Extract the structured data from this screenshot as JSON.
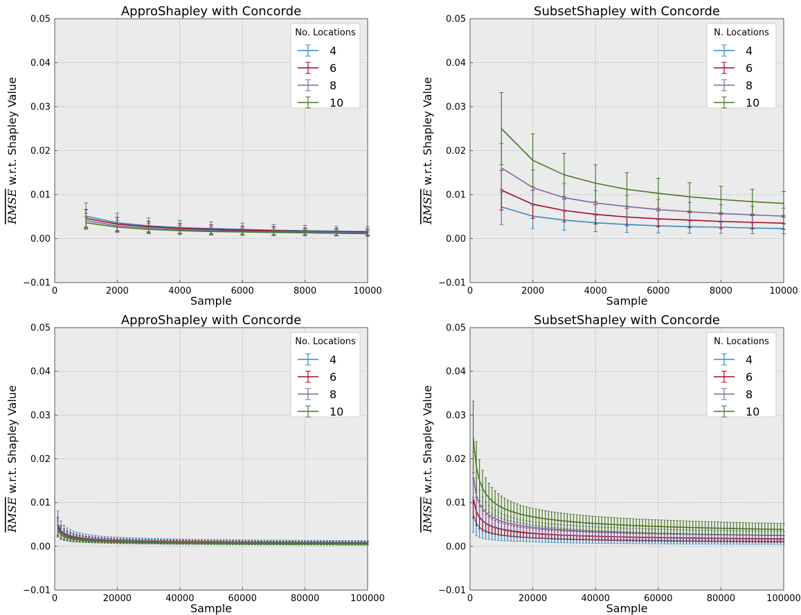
{
  "chart_data": [
    {
      "type": "line",
      "title": "ApproShapley with Concorde",
      "xlabel": "Sample",
      "ylabel_prefix": "RMSE",
      "ylabel": "w.r.t. Shapley Value",
      "xlim": [
        0,
        10000
      ],
      "ylim": [
        -0.01,
        0.05
      ],
      "xticks": [
        "0",
        "2000",
        "4000",
        "6000",
        "8000",
        "10000"
      ],
      "yticks": [
        "−0.01",
        "0.00",
        "0.01",
        "0.02",
        "0.03",
        "0.04",
        "0.05"
      ],
      "grid": true,
      "legend_title": "No. Locations",
      "legend_position": "top-right",
      "x": [
        1000,
        2000,
        3000,
        4000,
        5000,
        6000,
        7000,
        8000,
        9000,
        10000
      ],
      "series": [
        {
          "name": "4",
          "color": "#348abd",
          "values": [
            0.0051,
            0.0036,
            0.0029,
            0.0025,
            0.0023,
            0.0021,
            0.0019,
            0.0018,
            0.0017,
            0.0016
          ],
          "err": [
            0.003,
            0.0022,
            0.0018,
            0.0016,
            0.0015,
            0.0014,
            0.0013,
            0.0012,
            0.0011,
            0.0011
          ]
        },
        {
          "name": "6",
          "color": "#a60628",
          "values": [
            0.0046,
            0.0033,
            0.0027,
            0.0023,
            0.0021,
            0.0019,
            0.0018,
            0.0016,
            0.0015,
            0.0015
          ],
          "err": [
            0.002,
            0.0015,
            0.0012,
            0.0011,
            0.001,
            0.0009,
            0.0009,
            0.0008,
            0.0008,
            0.0007
          ]
        },
        {
          "name": "8",
          "color": "#7a68a6",
          "values": [
            0.0041,
            0.0029,
            0.0024,
            0.002,
            0.0018,
            0.0017,
            0.0016,
            0.0015,
            0.0014,
            0.0013
          ],
          "err": [
            0.0016,
            0.0012,
            0.001,
            0.0009,
            0.0008,
            0.0007,
            0.0007,
            0.0006,
            0.0006,
            0.0006
          ]
        },
        {
          "name": "10",
          "color": "#467821",
          "values": [
            0.0036,
            0.0026,
            0.0021,
            0.0018,
            0.0016,
            0.0015,
            0.0014,
            0.0013,
            0.0012,
            0.0011
          ],
          "err": [
            0.0013,
            0.001,
            0.0008,
            0.0007,
            0.0006,
            0.0006,
            0.0005,
            0.0005,
            0.0005,
            0.0004
          ]
        }
      ]
    },
    {
      "type": "line",
      "title": "SubsetShapley with Concorde",
      "xlabel": "Sample",
      "ylabel_prefix": "RMSE",
      "ylabel": "w.r.t. Shapley Value",
      "xlim": [
        0,
        10000
      ],
      "ylim": [
        -0.01,
        0.05
      ],
      "xticks": [
        "0",
        "2000",
        "4000",
        "6000",
        "8000",
        "10000"
      ],
      "yticks": [
        "−0.01",
        "0.00",
        "0.01",
        "0.02",
        "0.03",
        "0.04",
        "0.05"
      ],
      "grid": true,
      "legend_title": "N. Locations",
      "legend_position": "top-right",
      "x": [
        1000,
        2000,
        3000,
        4000,
        5000,
        6000,
        7000,
        8000,
        9000,
        10000
      ],
      "series": [
        {
          "name": "4",
          "color": "#348abd",
          "values": [
            0.0072,
            0.0051,
            0.0042,
            0.0036,
            0.0032,
            0.0029,
            0.0027,
            0.0026,
            0.0024,
            0.0023
          ],
          "err": [
            0.004,
            0.0028,
            0.0023,
            0.002,
            0.0018,
            0.0016,
            0.0015,
            0.0014,
            0.0013,
            0.0012
          ]
        },
        {
          "name": "6",
          "color": "#a60628",
          "values": [
            0.011,
            0.0078,
            0.0064,
            0.0055,
            0.0049,
            0.0045,
            0.0042,
            0.0039,
            0.0037,
            0.0035
          ],
          "err": [
            0.0045,
            0.0032,
            0.0026,
            0.0022,
            0.002,
            0.0018,
            0.0017,
            0.0016,
            0.0015,
            0.0014
          ]
        },
        {
          "name": "8",
          "color": "#7a68a6",
          "values": [
            0.0161,
            0.0116,
            0.0093,
            0.0081,
            0.0073,
            0.0066,
            0.0061,
            0.0057,
            0.0054,
            0.0051
          ],
          "err": [
            0.0055,
            0.004,
            0.0032,
            0.0028,
            0.0025,
            0.0023,
            0.0021,
            0.002,
            0.0019,
            0.0018
          ]
        },
        {
          "name": "10",
          "color": "#467821",
          "values": [
            0.025,
            0.0178,
            0.0145,
            0.0126,
            0.0112,
            0.0103,
            0.0095,
            0.0089,
            0.0084,
            0.008
          ],
          "err": [
            0.0082,
            0.006,
            0.0049,
            0.0042,
            0.0038,
            0.0034,
            0.0032,
            0.003,
            0.0028,
            0.0027
          ]
        }
      ]
    },
    {
      "type": "line",
      "title": "ApproShapley with Concorde",
      "xlabel": "Sample",
      "ylabel_prefix": "RMSE",
      "ylabel": "w.r.t. Shapley Value",
      "xlim": [
        0,
        100000
      ],
      "ylim": [
        -0.01,
        0.05
      ],
      "xticks": [
        "0",
        "20000",
        "40000",
        "60000",
        "80000",
        "100000"
      ],
      "yticks": [
        "−0.01",
        "0.00",
        "0.01",
        "0.02",
        "0.03",
        "0.04",
        "0.05"
      ],
      "grid": true,
      "legend_title": "No. Locations",
      "legend_position": "top-right",
      "x_range": {
        "start": 1000,
        "end": 100000,
        "step": 1000
      },
      "series": [
        {
          "name": "4",
          "color": "#348abd",
          "y_at_1000": 0.0051,
          "err_at_1000": 0.003
        },
        {
          "name": "6",
          "color": "#a60628",
          "y_at_1000": 0.0046,
          "err_at_1000": 0.002
        },
        {
          "name": "8",
          "color": "#7a68a6",
          "y_at_1000": 0.0041,
          "err_at_1000": 0.0016
        },
        {
          "name": "10",
          "color": "#467821",
          "y_at_1000": 0.0036,
          "err_at_1000": 0.0013
        }
      ]
    },
    {
      "type": "line",
      "title": "SubsetShapley with Concorde",
      "xlabel": "Sample",
      "ylabel_prefix": "RMSE",
      "ylabel": "w.r.t. Shapley Value",
      "xlim": [
        0,
        100000
      ],
      "ylim": [
        -0.01,
        0.05
      ],
      "xticks": [
        "0",
        "20000",
        "40000",
        "60000",
        "80000",
        "100000"
      ],
      "yticks": [
        "−0.01",
        "0.00",
        "0.01",
        "0.02",
        "0.03",
        "0.04",
        "0.05"
      ],
      "grid": true,
      "legend_title": "N. Locations",
      "legend_position": "top-right",
      "x_range": {
        "start": 1000,
        "end": 100000,
        "step": 1000
      },
      "series": [
        {
          "name": "4",
          "color": "#348abd",
          "y_at_1000": 0.0072,
          "err_at_1000": 0.004
        },
        {
          "name": "6",
          "color": "#a60628",
          "y_at_1000": 0.011,
          "err_at_1000": 0.0045
        },
        {
          "name": "8",
          "color": "#7a68a6",
          "y_at_1000": 0.0161,
          "err_at_1000": 0.0055
        },
        {
          "name": "10",
          "color": "#467821",
          "y_at_1000": 0.025,
          "err_at_1000": 0.0082
        }
      ]
    }
  ]
}
